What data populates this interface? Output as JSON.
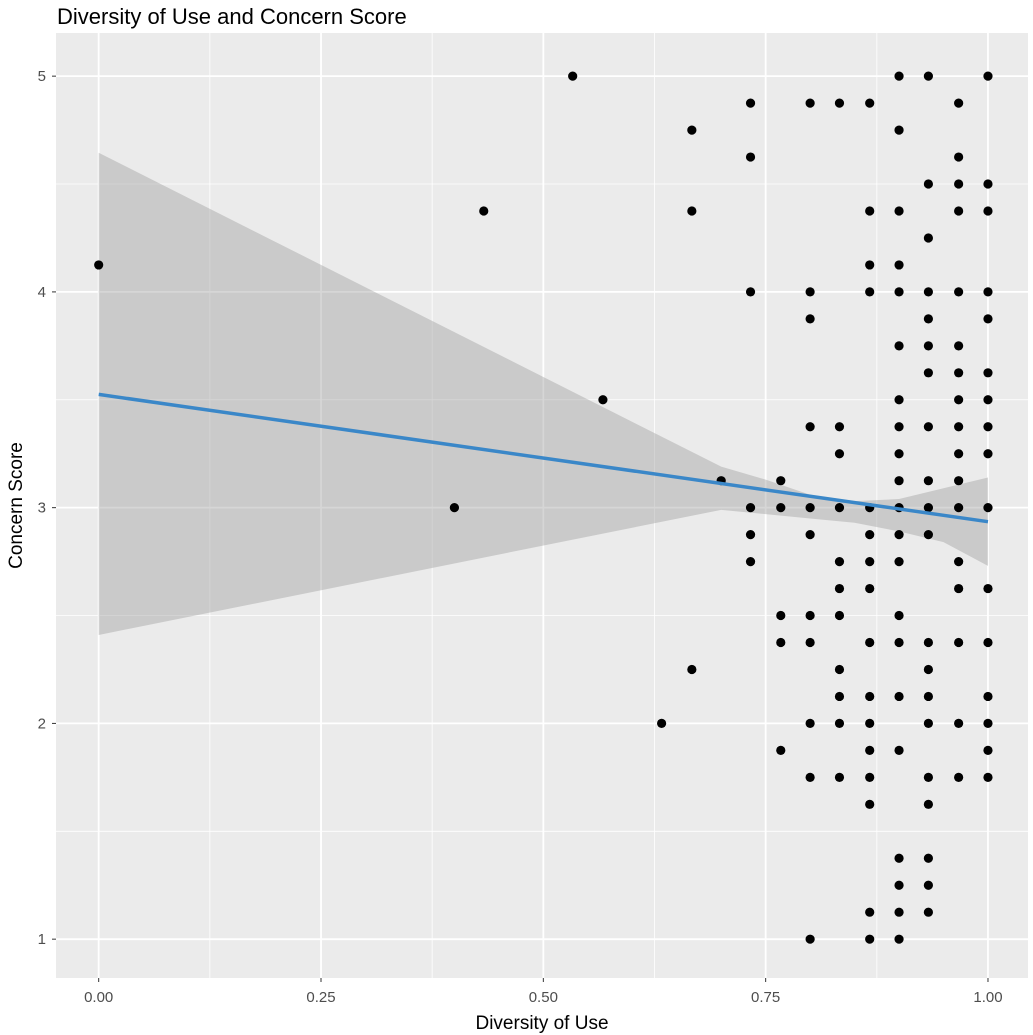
{
  "chart_data": {
    "type": "scatter",
    "title": "Diversity of Use and Concern Score",
    "xlabel": "Diversity of Use",
    "ylabel": "Concern Score",
    "xlim": [
      -0.048,
      1.045
    ],
    "ylim": [
      0.82,
      5.2
    ],
    "xticks": [
      0,
      0.25,
      0.5,
      0.75,
      1
    ],
    "xtick_labels": [
      "0.00",
      "0.25",
      "0.50",
      "0.75",
      "1.00"
    ],
    "yticks": [
      1,
      2,
      3,
      4,
      5
    ],
    "ytick_labels": [
      "1",
      "2",
      "3",
      "4",
      "5"
    ],
    "grid": true,
    "background": "#ebebeb",
    "grid_color": "#ffffff",
    "point_color": "#000000",
    "line_color": "#3a87c8",
    "band_color": "#999999",
    "points": [
      [
        0.0,
        4.125
      ],
      [
        0.4,
        3.0
      ],
      [
        0.433,
        4.375
      ],
      [
        0.533,
        5.0
      ],
      [
        0.567,
        3.5
      ],
      [
        0.633,
        2.0
      ],
      [
        0.667,
        4.75
      ],
      [
        0.667,
        4.375
      ],
      [
        0.667,
        2.25
      ],
      [
        0.7,
        3.125
      ],
      [
        0.733,
        4.875
      ],
      [
        0.733,
        4.625
      ],
      [
        0.733,
        4.0
      ],
      [
        0.733,
        3.0
      ],
      [
        0.733,
        2.875
      ],
      [
        0.733,
        2.75
      ],
      [
        0.767,
        3.125
      ],
      [
        0.767,
        3.0
      ],
      [
        0.767,
        2.5
      ],
      [
        0.767,
        2.375
      ],
      [
        0.767,
        1.875
      ],
      [
        0.8,
        4.875
      ],
      [
        0.8,
        4.0
      ],
      [
        0.8,
        3.875
      ],
      [
        0.8,
        3.375
      ],
      [
        0.8,
        3.0
      ],
      [
        0.8,
        2.875
      ],
      [
        0.8,
        2.5
      ],
      [
        0.8,
        2.375
      ],
      [
        0.8,
        2.0
      ],
      [
        0.8,
        1.75
      ],
      [
        0.8,
        1.0
      ],
      [
        0.833,
        4.875
      ],
      [
        0.833,
        3.375
      ],
      [
        0.833,
        3.25
      ],
      [
        0.833,
        3.0
      ],
      [
        0.833,
        2.75
      ],
      [
        0.833,
        2.625
      ],
      [
        0.833,
        2.5
      ],
      [
        0.833,
        2.25
      ],
      [
        0.833,
        2.125
      ],
      [
        0.833,
        2.0
      ],
      [
        0.833,
        1.75
      ],
      [
        0.867,
        4.875
      ],
      [
        0.867,
        4.375
      ],
      [
        0.867,
        4.125
      ],
      [
        0.867,
        4.0
      ],
      [
        0.867,
        3.0
      ],
      [
        0.867,
        2.875
      ],
      [
        0.867,
        2.75
      ],
      [
        0.867,
        2.625
      ],
      [
        0.867,
        2.375
      ],
      [
        0.867,
        2.125
      ],
      [
        0.867,
        2.0
      ],
      [
        0.867,
        1.875
      ],
      [
        0.867,
        1.75
      ],
      [
        0.867,
        1.625
      ],
      [
        0.867,
        1.125
      ],
      [
        0.867,
        1.0
      ],
      [
        0.9,
        5.0
      ],
      [
        0.9,
        4.75
      ],
      [
        0.9,
        4.375
      ],
      [
        0.9,
        4.125
      ],
      [
        0.9,
        4.0
      ],
      [
        0.9,
        3.75
      ],
      [
        0.9,
        3.5
      ],
      [
        0.9,
        3.375
      ],
      [
        0.9,
        3.25
      ],
      [
        0.9,
        3.125
      ],
      [
        0.9,
        3.0
      ],
      [
        0.9,
        2.875
      ],
      [
        0.9,
        2.75
      ],
      [
        0.9,
        2.5
      ],
      [
        0.9,
        2.375
      ],
      [
        0.9,
        2.125
      ],
      [
        0.9,
        1.875
      ],
      [
        0.9,
        1.375
      ],
      [
        0.9,
        1.25
      ],
      [
        0.9,
        1.125
      ],
      [
        0.9,
        1.0
      ],
      [
        0.933,
        5.0
      ],
      [
        0.933,
        4.5
      ],
      [
        0.933,
        4.25
      ],
      [
        0.933,
        4.0
      ],
      [
        0.933,
        3.875
      ],
      [
        0.933,
        3.75
      ],
      [
        0.933,
        3.625
      ],
      [
        0.933,
        3.375
      ],
      [
        0.933,
        3.125
      ],
      [
        0.933,
        3.0
      ],
      [
        0.933,
        2.875
      ],
      [
        0.933,
        2.375
      ],
      [
        0.933,
        2.25
      ],
      [
        0.933,
        2.125
      ],
      [
        0.933,
        2.0
      ],
      [
        0.933,
        1.75
      ],
      [
        0.933,
        1.625
      ],
      [
        0.933,
        1.375
      ],
      [
        0.933,
        1.25
      ],
      [
        0.933,
        1.125
      ],
      [
        0.967,
        4.875
      ],
      [
        0.967,
        4.625
      ],
      [
        0.967,
        4.5
      ],
      [
        0.967,
        4.375
      ],
      [
        0.967,
        4.0
      ],
      [
        0.967,
        3.75
      ],
      [
        0.967,
        3.625
      ],
      [
        0.967,
        3.5
      ],
      [
        0.967,
        3.375
      ],
      [
        0.967,
        3.25
      ],
      [
        0.967,
        3.125
      ],
      [
        0.967,
        3.0
      ],
      [
        0.967,
        2.75
      ],
      [
        0.967,
        2.625
      ],
      [
        0.967,
        2.375
      ],
      [
        0.967,
        2.0
      ],
      [
        0.967,
        1.75
      ],
      [
        1.0,
        5.0
      ],
      [
        1.0,
        4.5
      ],
      [
        1.0,
        4.375
      ],
      [
        1.0,
        4.0
      ],
      [
        1.0,
        3.875
      ],
      [
        1.0,
        3.625
      ],
      [
        1.0,
        3.5
      ],
      [
        1.0,
        3.375
      ],
      [
        1.0,
        3.25
      ],
      [
        1.0,
        3.0
      ],
      [
        1.0,
        2.625
      ],
      [
        1.0,
        2.375
      ],
      [
        1.0,
        2.125
      ],
      [
        1.0,
        2.0
      ],
      [
        1.0,
        1.875
      ],
      [
        1.0,
        1.75
      ]
    ],
    "trend_line": {
      "x": [
        0,
        1
      ],
      "y": [
        3.525,
        2.935
      ]
    },
    "confidence_band": {
      "x": [
        0,
        0.7,
        0.75,
        0.8,
        0.85,
        0.9,
        0.95,
        1.0
      ],
      "upper": [
        4.645,
        3.19,
        3.13,
        3.06,
        3.03,
        3.04,
        3.09,
        3.14
      ],
      "lower": [
        2.41,
        2.99,
        2.97,
        2.95,
        2.93,
        2.89,
        2.84,
        2.73
      ]
    }
  }
}
